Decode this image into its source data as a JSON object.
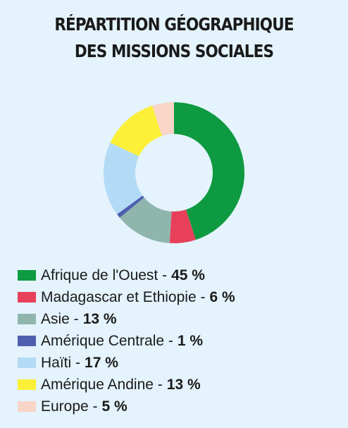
{
  "title_line1": "RÉPARTITION GÉOGRAPHIQUE",
  "title_line2": "DES MISSIONS SOCIALES",
  "chart_data": {
    "type": "pie",
    "donut": true,
    "title": "RÉPARTITION GÉOGRAPHIQUE DES MISSIONS SOCIALES",
    "unit": "%",
    "legend_position": "bottom",
    "slices": [
      {
        "label": "Afrique de l'Ouest",
        "value": 45,
        "value_label": "45 %",
        "color": "#0d9a41"
      },
      {
        "label": "Madagascar et Ethiopie",
        "value": 6,
        "value_label": "6 %",
        "color": "#e8405b"
      },
      {
        "label": "Asie",
        "value": 13,
        "value_label": "13 %",
        "color": "#8fb5ad"
      },
      {
        "label": "Amérique Centrale",
        "value": 1,
        "value_label": "1 %",
        "color": "#4f5fae"
      },
      {
        "label": "Haïti",
        "value": 17,
        "value_label": "17 %",
        "color": "#b3dbf5"
      },
      {
        "label": "Amérique Andine",
        "value": 13,
        "value_label": "13 %",
        "color": "#fbf037"
      },
      {
        "label": "Europe",
        "value": 5,
        "value_label": "5 %",
        "color": "#f8d5c7"
      }
    ]
  }
}
